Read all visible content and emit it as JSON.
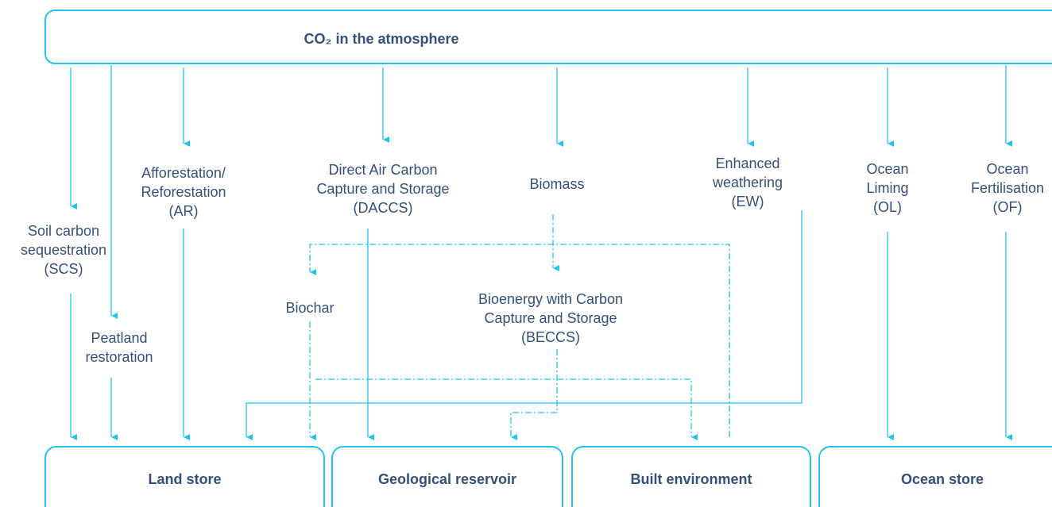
{
  "source": {
    "label": "CO₂ in the atmosphere"
  },
  "methods": [
    {
      "lines": [
        "Soil carbon",
        "sequestration",
        "(SCS)"
      ]
    },
    {
      "lines": [
        "Peatland",
        "restoration"
      ]
    },
    {
      "lines": [
        "Afforestation/",
        "Reforestation",
        "(AR)"
      ]
    },
    {
      "lines": [
        "Direct Air Carbon",
        "Capture and Storage",
        "(DACCS)"
      ]
    },
    {
      "lines": [
        "Biomass"
      ]
    },
    {
      "lines": [
        "Enhanced",
        "weathering",
        "(EW)"
      ]
    },
    {
      "lines": [
        "Ocean",
        "Liming",
        "(OL)"
      ]
    },
    {
      "lines": [
        "Ocean",
        "Fertilisation",
        "(OF)"
      ]
    },
    {
      "lines": [
        "Biochar"
      ]
    },
    {
      "lines": [
        "Bioenergy with Carbon",
        "Capture and Storage",
        "(BECCS)"
      ]
    }
  ],
  "stores": [
    {
      "label": "Land store"
    },
    {
      "label": "Geological reservoir"
    },
    {
      "label": "Built environment"
    },
    {
      "label": "Ocean store"
    }
  ]
}
